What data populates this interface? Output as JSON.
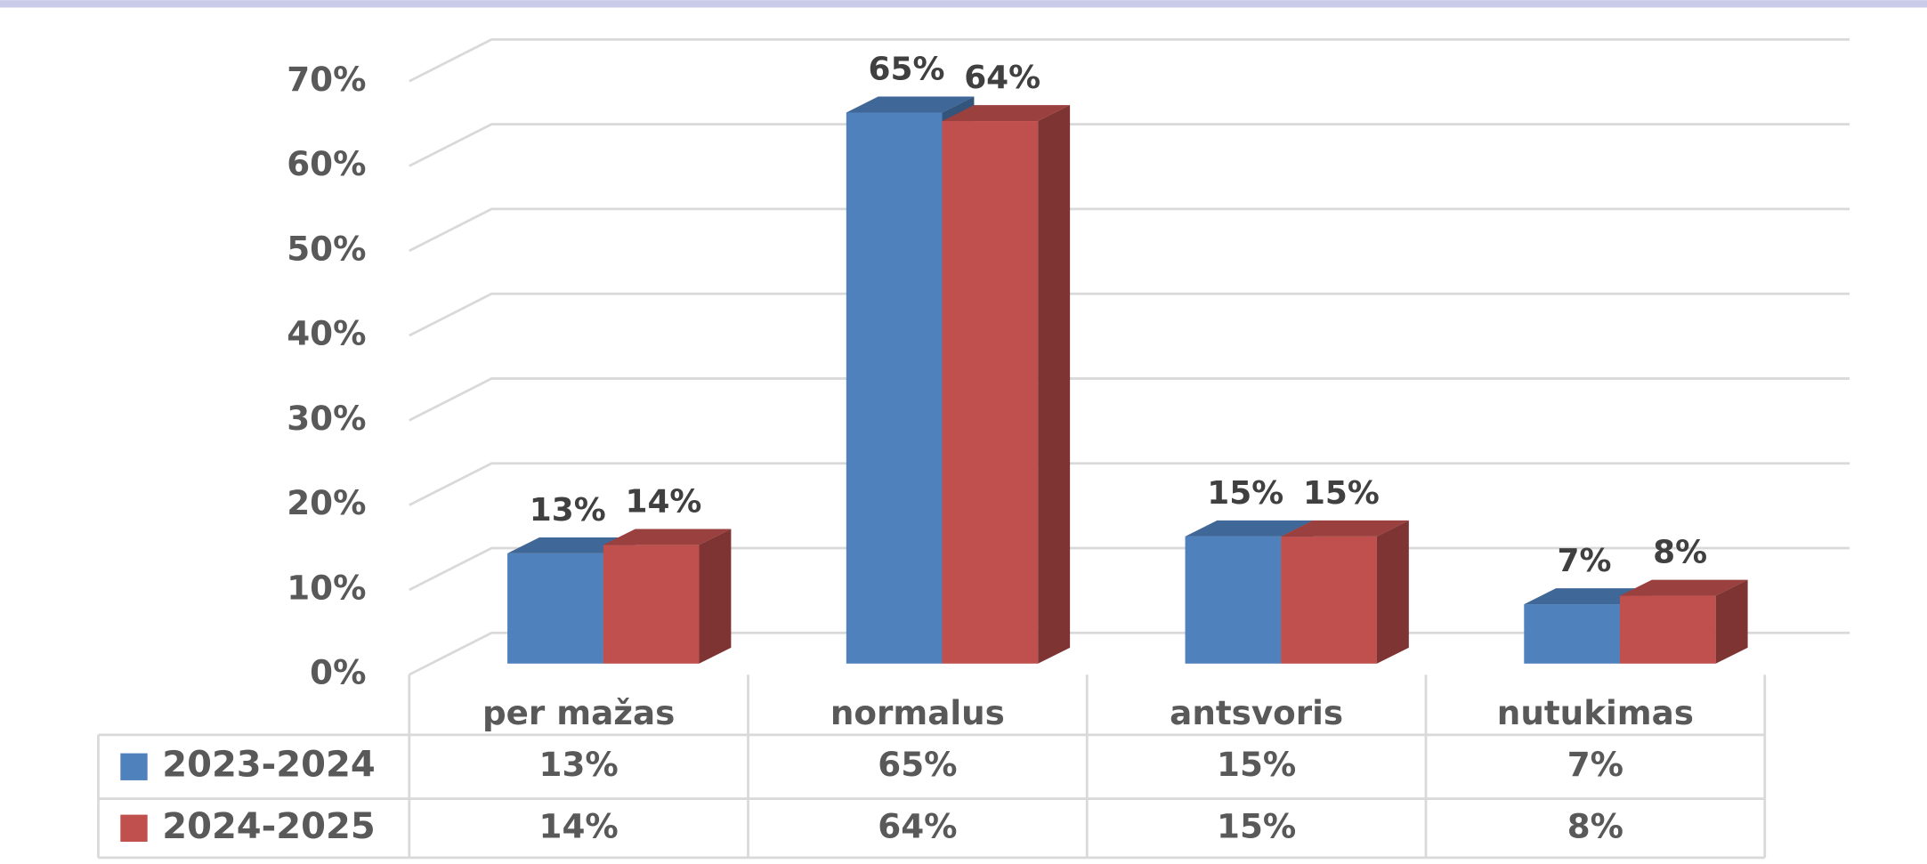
{
  "chart_data": {
    "type": "bar3d",
    "categories": [
      "per mažas",
      "normalus",
      "antsvoris",
      "nutukimas"
    ],
    "series": [
      {
        "name": "2023-2024",
        "color": "#4f81bd",
        "values": [
          13,
          65,
          15,
          7
        ],
        "value_labels": [
          "13%",
          "65%",
          "15%",
          "7%"
        ]
      },
      {
        "name": "2024-2025",
        "color": "#c0504d",
        "values": [
          14,
          64,
          15,
          8
        ],
        "value_labels": [
          "14%",
          "64%",
          "15%",
          "8%"
        ]
      }
    ],
    "ylim": [
      0,
      70
    ],
    "yticks": [
      {
        "value": 0,
        "label": "0%"
      },
      {
        "value": 10,
        "label": "10%"
      },
      {
        "value": 20,
        "label": "20%"
      },
      {
        "value": 30,
        "label": "30%"
      },
      {
        "value": 40,
        "label": "40%"
      },
      {
        "value": 50,
        "label": "50%"
      },
      {
        "value": 60,
        "label": "60%"
      },
      {
        "value": 70,
        "label": "70%"
      }
    ],
    "grid": true,
    "data_table": true
  }
}
